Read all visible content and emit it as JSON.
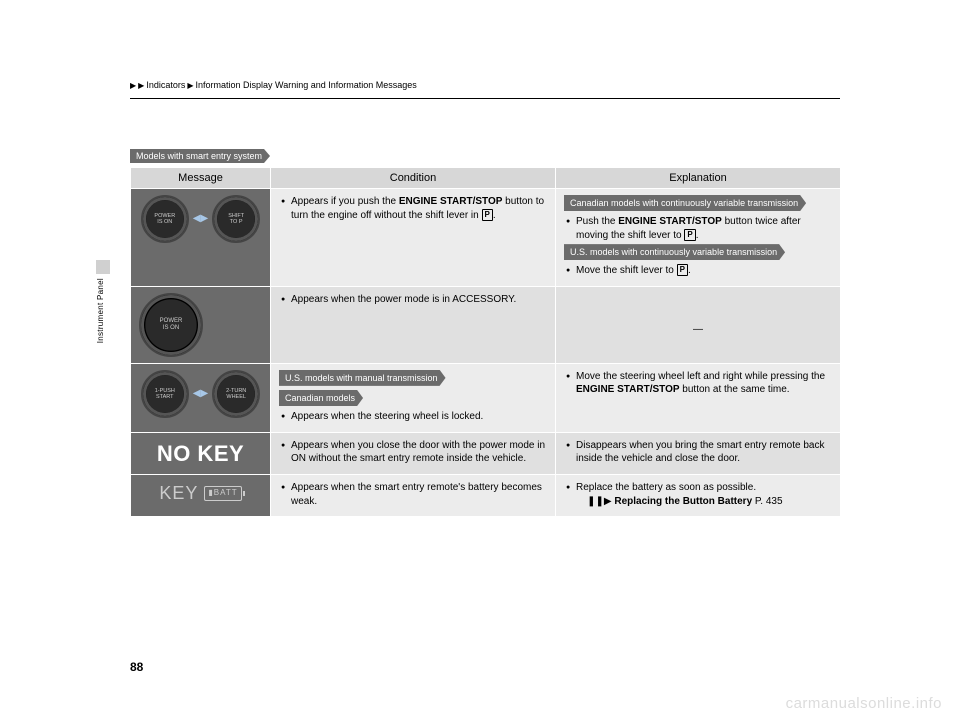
{
  "breadcrumb": {
    "part1": "Indicators",
    "part2": "Information Display Warning and Information Messages"
  },
  "side": {
    "label": "Instrument Panel"
  },
  "top_tag": "Models with smart entry system",
  "headers": {
    "message": "Message",
    "condition": "Condition",
    "explanation": "Explanation"
  },
  "rows": [
    {
      "gauge": {
        "type": "pair",
        "left": "POWER\nIS ON",
        "right": "SHIFT\nTO P"
      },
      "cond": {
        "items": [
          {
            "text_pre": "Appears if you push the ",
            "bold": "ENGINE START/STOP",
            "text_mid": " button to turn the engine off without the shift lever in ",
            "pbox": "P",
            "text_post": "."
          }
        ]
      },
      "exp": {
        "blocks": [
          {
            "tag": "Canadian models with continuously variable transmission",
            "item": {
              "text_pre": "Push the ",
              "bold": "ENGINE START/STOP",
              "text_mid": " button twice after moving the shift lever to ",
              "pbox": "P",
              "text_post": "."
            }
          },
          {
            "tag": "U.S. models with continuously variable transmission",
            "item": {
              "text_pre": "Move the shift lever to ",
              "pbox": "P",
              "text_post": "."
            }
          }
        ]
      }
    },
    {
      "gauge": {
        "type": "single",
        "text": "POWER\nIS ON"
      },
      "cond": {
        "items": [
          {
            "text": "Appears when the power mode is in ACCESSORY."
          }
        ]
      },
      "exp": {
        "dash": "—"
      }
    },
    {
      "gauge": {
        "type": "pair",
        "left": "1-PUSH\nSTART",
        "right": "2-TURN\nWHEEL"
      },
      "cond": {
        "tags": [
          "U.S. models with manual transmission",
          "Canadian models"
        ],
        "items": [
          {
            "text": "Appears when the steering wheel is locked."
          }
        ]
      },
      "exp": {
        "items": [
          {
            "text_pre": "Move the steering wheel left and right while pressing the ",
            "bold": "ENGINE START/STOP",
            "text_post": " button at the same time."
          }
        ]
      }
    },
    {
      "gauge": {
        "type": "nokey",
        "text": "NO KEY"
      },
      "cond": {
        "items": [
          {
            "text": "Appears when you close the door with the power mode in ON without the smart entry remote inside the vehicle."
          }
        ]
      },
      "exp": {
        "items": [
          {
            "text": "Disappears when you bring the smart entry remote back inside the vehicle and close the door."
          }
        ]
      }
    },
    {
      "gauge": {
        "type": "keybatt",
        "text": "KEY",
        "batt": "BATT"
      },
      "cond": {
        "items": [
          {
            "text": "Appears when the smart entry remote's battery becomes weak."
          }
        ]
      },
      "exp": {
        "items": [
          {
            "text": "Replace the battery as soon as possible."
          }
        ],
        "ref": {
          "label": "Replacing the Button Battery",
          "page": "P. 435"
        }
      }
    }
  ],
  "page_number": "88",
  "watermark": "carmanualsonline.info"
}
